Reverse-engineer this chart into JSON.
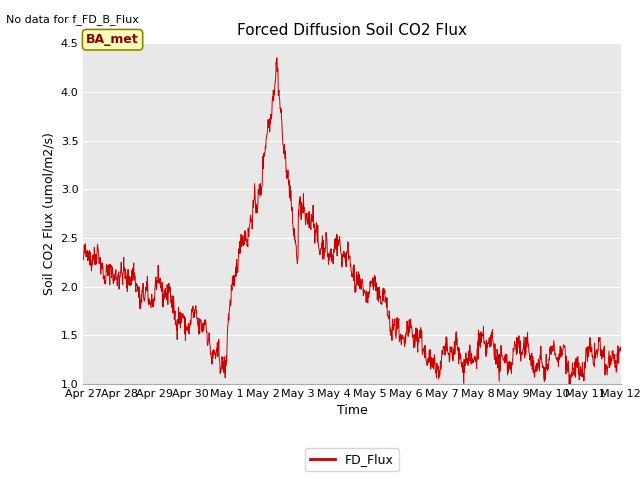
{
  "title": "Forced Diffusion Soil CO2 Flux",
  "ylabel": "Soil CO2 Flux (umol/m2/s)",
  "xlabel": "Time",
  "no_data_text": "No data for f_FD_B_Flux",
  "legend_label": "FD_Flux",
  "ba_met_label": "BA_met",
  "ylim": [
    1.0,
    4.5
  ],
  "xlim": [
    0,
    360
  ],
  "line_color": "#cc0000",
  "legend_line_color": "#cc0000",
  "axes_facecolor": "#e8e8e8",
  "figure_facecolor": "#ffffff",
  "title_fontsize": 11,
  "axis_label_fontsize": 9,
  "tick_fontsize": 8,
  "no_data_fontsize": 8,
  "ba_met_fontsize": 9,
  "legend_fontsize": 9,
  "x_tick_labels": [
    "Apr 27",
    "Apr 28",
    "Apr 29",
    "Apr 30",
    "May 1",
    "May 2",
    "May 3",
    "May 4",
    "May 5",
    "May 6",
    "May 7",
    "May 8",
    "May 9",
    "May 10",
    "May 11",
    "May 12"
  ],
  "x_tick_positions": [
    0,
    24,
    48,
    72,
    96,
    120,
    144,
    168,
    192,
    216,
    240,
    264,
    288,
    312,
    336,
    360
  ],
  "y_ticks": [
    1.0,
    1.5,
    2.0,
    2.5,
    3.0,
    3.5,
    4.0,
    4.5
  ]
}
